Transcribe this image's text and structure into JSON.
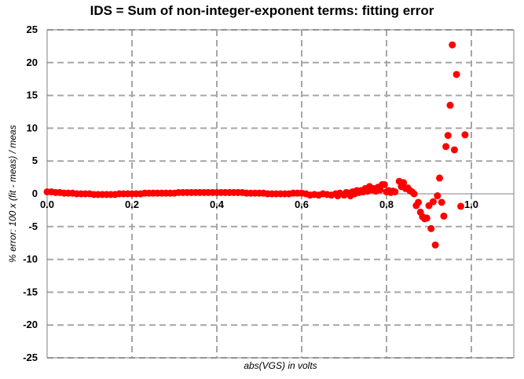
{
  "chart_data": {
    "type": "scatter",
    "title": "IDS = Sum of non-integer-exponent terms: fitting error",
    "xlabel": "abs(VGS) in volts",
    "ylabel": "% error: 100 x (fit - meas) / meas",
    "xlim": [
      0.0,
      1.1
    ],
    "ylim": [
      -25,
      25
    ],
    "x_ticks": [
      "0.0",
      "0.2",
      "0.4",
      "0.6",
      "0.8",
      "1.0"
    ],
    "y_ticks": [
      "25",
      "20",
      "15",
      "10",
      "5",
      "0",
      "-5",
      "-10",
      "-15",
      "-20",
      "-25"
    ],
    "grid": "dashed",
    "legend": "none",
    "marker_color": "#ff0000",
    "series": [
      {
        "points": [
          [
            0.0,
            0.3
          ],
          [
            0.01,
            0.3
          ],
          [
            0.02,
            0.2
          ],
          [
            0.03,
            0.2
          ],
          [
            0.04,
            0.1
          ],
          [
            0.05,
            0.1
          ],
          [
            0.06,
            0.1
          ],
          [
            0.07,
            0.0
          ],
          [
            0.08,
            0.0
          ],
          [
            0.09,
            0.0
          ],
          [
            0.1,
            0.0
          ],
          [
            0.11,
            -0.1
          ],
          [
            0.12,
            -0.1
          ],
          [
            0.13,
            -0.1
          ],
          [
            0.14,
            -0.1
          ],
          [
            0.15,
            -0.1
          ],
          [
            0.16,
            -0.1
          ],
          [
            0.17,
            0.0
          ],
          [
            0.18,
            0.0
          ],
          [
            0.19,
            0.0
          ],
          [
            0.2,
            0.0
          ],
          [
            0.21,
            0.0
          ],
          [
            0.22,
            0.0
          ],
          [
            0.23,
            0.1
          ],
          [
            0.24,
            0.1
          ],
          [
            0.25,
            0.1
          ],
          [
            0.26,
            0.1
          ],
          [
            0.27,
            0.1
          ],
          [
            0.28,
            0.1
          ],
          [
            0.29,
            0.1
          ],
          [
            0.3,
            0.1
          ],
          [
            0.31,
            0.2
          ],
          [
            0.32,
            0.2
          ],
          [
            0.33,
            0.2
          ],
          [
            0.34,
            0.2
          ],
          [
            0.35,
            0.2
          ],
          [
            0.36,
            0.2
          ],
          [
            0.37,
            0.2
          ],
          [
            0.38,
            0.2
          ],
          [
            0.39,
            0.2
          ],
          [
            0.4,
            0.2
          ],
          [
            0.41,
            0.2
          ],
          [
            0.42,
            0.2
          ],
          [
            0.43,
            0.2
          ],
          [
            0.44,
            0.2
          ],
          [
            0.45,
            0.2
          ],
          [
            0.46,
            0.2
          ],
          [
            0.47,
            0.1
          ],
          [
            0.48,
            0.1
          ],
          [
            0.49,
            0.1
          ],
          [
            0.5,
            0.1
          ],
          [
            0.51,
            0.1
          ],
          [
            0.52,
            0.0
          ],
          [
            0.53,
            0.0
          ],
          [
            0.54,
            0.0
          ],
          [
            0.55,
            0.0
          ],
          [
            0.56,
            0.0
          ],
          [
            0.57,
            0.0
          ],
          [
            0.58,
            0.1
          ],
          [
            0.59,
            0.1
          ],
          [
            0.6,
            0.1
          ],
          [
            0.61,
            0.0
          ],
          [
            0.62,
            -0.2
          ],
          [
            0.63,
            -0.1
          ],
          [
            0.64,
            -0.2
          ],
          [
            0.65,
            0.0
          ],
          [
            0.66,
            -0.1
          ],
          [
            0.67,
            -0.2
          ],
          [
            0.68,
            0.0
          ],
          [
            0.685,
            -0.3
          ],
          [
            0.69,
            0.1
          ],
          [
            0.7,
            -0.2
          ],
          [
            0.705,
            0.2
          ],
          [
            0.71,
            0.1
          ],
          [
            0.715,
            -0.3
          ],
          [
            0.72,
            0.3
          ],
          [
            0.725,
            0.0
          ],
          [
            0.73,
            0.5
          ],
          [
            0.735,
            0.2
          ],
          [
            0.74,
            0.5
          ],
          [
            0.745,
            0.3
          ],
          [
            0.75,
            0.8
          ],
          [
            0.755,
            0.4
          ],
          [
            0.76,
            1.1
          ],
          [
            0.765,
            0.6
          ],
          [
            0.77,
            0.8
          ],
          [
            0.775,
            0.4
          ],
          [
            0.78,
            1.0
          ],
          [
            0.785,
            0.6
          ],
          [
            0.79,
            1.4
          ],
          [
            0.795,
            1.4
          ],
          [
            0.8,
            0.3
          ],
          [
            0.805,
            0.5
          ],
          [
            0.81,
            0.2
          ],
          [
            0.815,
            0.4
          ],
          [
            0.82,
            0.3
          ],
          [
            0.83,
            1.9
          ],
          [
            0.835,
            1.1
          ],
          [
            0.84,
            1.7
          ],
          [
            0.845,
            0.8
          ],
          [
            0.85,
            0.9
          ],
          [
            0.855,
            0.5
          ],
          [
            0.86,
            0.3
          ],
          [
            0.865,
            0.0
          ],
          [
            0.87,
            -1.8
          ],
          [
            0.875,
            -1.3
          ],
          [
            0.88,
            -2.8
          ],
          [
            0.885,
            -3.5
          ],
          [
            0.89,
            -3.8
          ],
          [
            0.895,
            -3.7
          ],
          [
            0.9,
            -1.8
          ],
          [
            0.905,
            -5.3
          ],
          [
            0.91,
            -1.2
          ],
          [
            0.915,
            -7.8
          ],
          [
            0.92,
            -0.3
          ],
          [
            0.925,
            2.4
          ],
          [
            0.93,
            -1.3
          ],
          [
            0.935,
            -3.4
          ],
          [
            0.94,
            7.2
          ],
          [
            0.945,
            8.9
          ],
          [
            0.95,
            13.5
          ],
          [
            0.955,
            22.7
          ],
          [
            0.96,
            6.7
          ],
          [
            0.965,
            18.2
          ],
          [
            0.975,
            -1.9
          ],
          [
            0.985,
            9.0
          ]
        ]
      }
    ]
  }
}
